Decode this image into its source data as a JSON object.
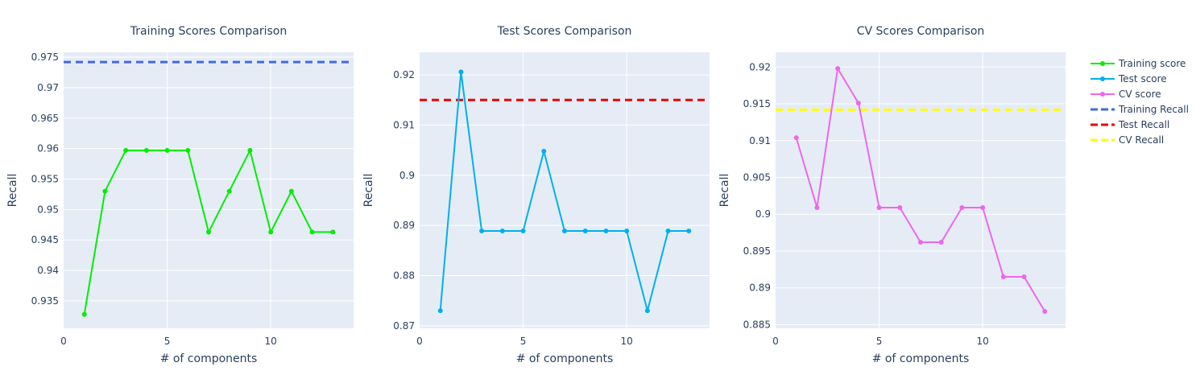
{
  "chart_data": [
    {
      "type": "line",
      "title": "Training Scores Comparison",
      "xlabel": "# of components",
      "ylabel": "Recall",
      "xlim": [
        0,
        14
      ],
      "ylim": [
        0.9305,
        0.9758
      ],
      "xticks": [
        0,
        5,
        10
      ],
      "yticks": [
        0.935,
        0.94,
        0.945,
        0.95,
        0.955,
        0.96,
        0.965,
        0.97,
        0.975
      ],
      "ytick_labels": [
        "0.935",
        "0.94",
        "0.945",
        "0.95",
        "0.955",
        "0.96",
        "0.965",
        "0.97",
        "0.975"
      ],
      "series": [
        {
          "name": "Training score",
          "color": "#00ee00",
          "x": [
            1,
            2,
            3,
            4,
            5,
            6,
            7,
            8,
            9,
            10,
            11,
            12,
            13
          ],
          "y": [
            0.9328,
            0.953,
            0.9597,
            0.9597,
            0.9597,
            0.9597,
            0.9463,
            0.953,
            0.9597,
            0.9463,
            0.953,
            0.9463,
            0.9463
          ]
        }
      ],
      "hline": {
        "name": "Training Recall",
        "value": 0.9742,
        "color": "#4169e1"
      }
    },
    {
      "type": "line",
      "title": "Test Scores Comparison",
      "xlabel": "# of components",
      "ylabel": "Recall",
      "xlim": [
        0,
        14
      ],
      "ylim": [
        0.8695,
        0.9245
      ],
      "xticks": [
        0,
        5,
        10
      ],
      "yticks": [
        0.87,
        0.88,
        0.89,
        0.9,
        0.91,
        0.92
      ],
      "ytick_labels": [
        "0.87",
        "0.88",
        "0.89",
        "0.9",
        "0.91",
        "0.92"
      ],
      "series": [
        {
          "name": "Test score",
          "color": "#00b0ee",
          "x": [
            1,
            2,
            3,
            4,
            5,
            6,
            7,
            8,
            9,
            10,
            11,
            12,
            13
          ],
          "y": [
            0.873,
            0.9206,
            0.8889,
            0.8889,
            0.8889,
            0.9048,
            0.8889,
            0.8889,
            0.8889,
            0.8889,
            0.873,
            0.8889,
            0.8889
          ]
        }
      ],
      "hline": {
        "name": "Test Recall",
        "value": 0.915,
        "color": "#ee0000"
      }
    },
    {
      "type": "line",
      "title": "CV Scores Comparison",
      "xlabel": "# of components",
      "ylabel": "Recall",
      "xlim": [
        0,
        14
      ],
      "ylim": [
        0.8845,
        0.922
      ],
      "xticks": [
        0,
        5,
        10
      ],
      "yticks": [
        0.885,
        0.89,
        0.895,
        0.9,
        0.905,
        0.91,
        0.915,
        0.92
      ],
      "ytick_labels": [
        "0.885",
        "0.89",
        "0.895",
        "0.9",
        "0.905",
        "0.91",
        "0.915",
        "0.92"
      ],
      "series": [
        {
          "name": "CV score",
          "color": "#ee66ee",
          "x": [
            1,
            2,
            3,
            4,
            5,
            6,
            7,
            8,
            9,
            10,
            11,
            12,
            13
          ],
          "y": [
            0.9104,
            0.9009,
            0.9198,
            0.9151,
            0.9009,
            0.9009,
            0.8962,
            0.8962,
            0.9009,
            0.9009,
            0.8915,
            0.8915,
            0.8868
          ]
        }
      ],
      "hline": {
        "name": "CV Recall",
        "value": 0.9142,
        "color": "#ffff00"
      }
    }
  ],
  "legend": {
    "position": "top-right",
    "items": [
      {
        "label": "Training score",
        "kind": "line-marker",
        "color": "#00ee00"
      },
      {
        "label": "Test score",
        "kind": "line-marker",
        "color": "#00b0ee"
      },
      {
        "label": "CV score",
        "kind": "line-marker",
        "color": "#ee66ee"
      },
      {
        "label": "Training Recall",
        "kind": "dash",
        "color": "#4169e1"
      },
      {
        "label": "Test Recall",
        "kind": "dash",
        "color": "#ee0000"
      },
      {
        "label": "CV Recall",
        "kind": "dash",
        "color": "#ffff00"
      }
    ]
  }
}
